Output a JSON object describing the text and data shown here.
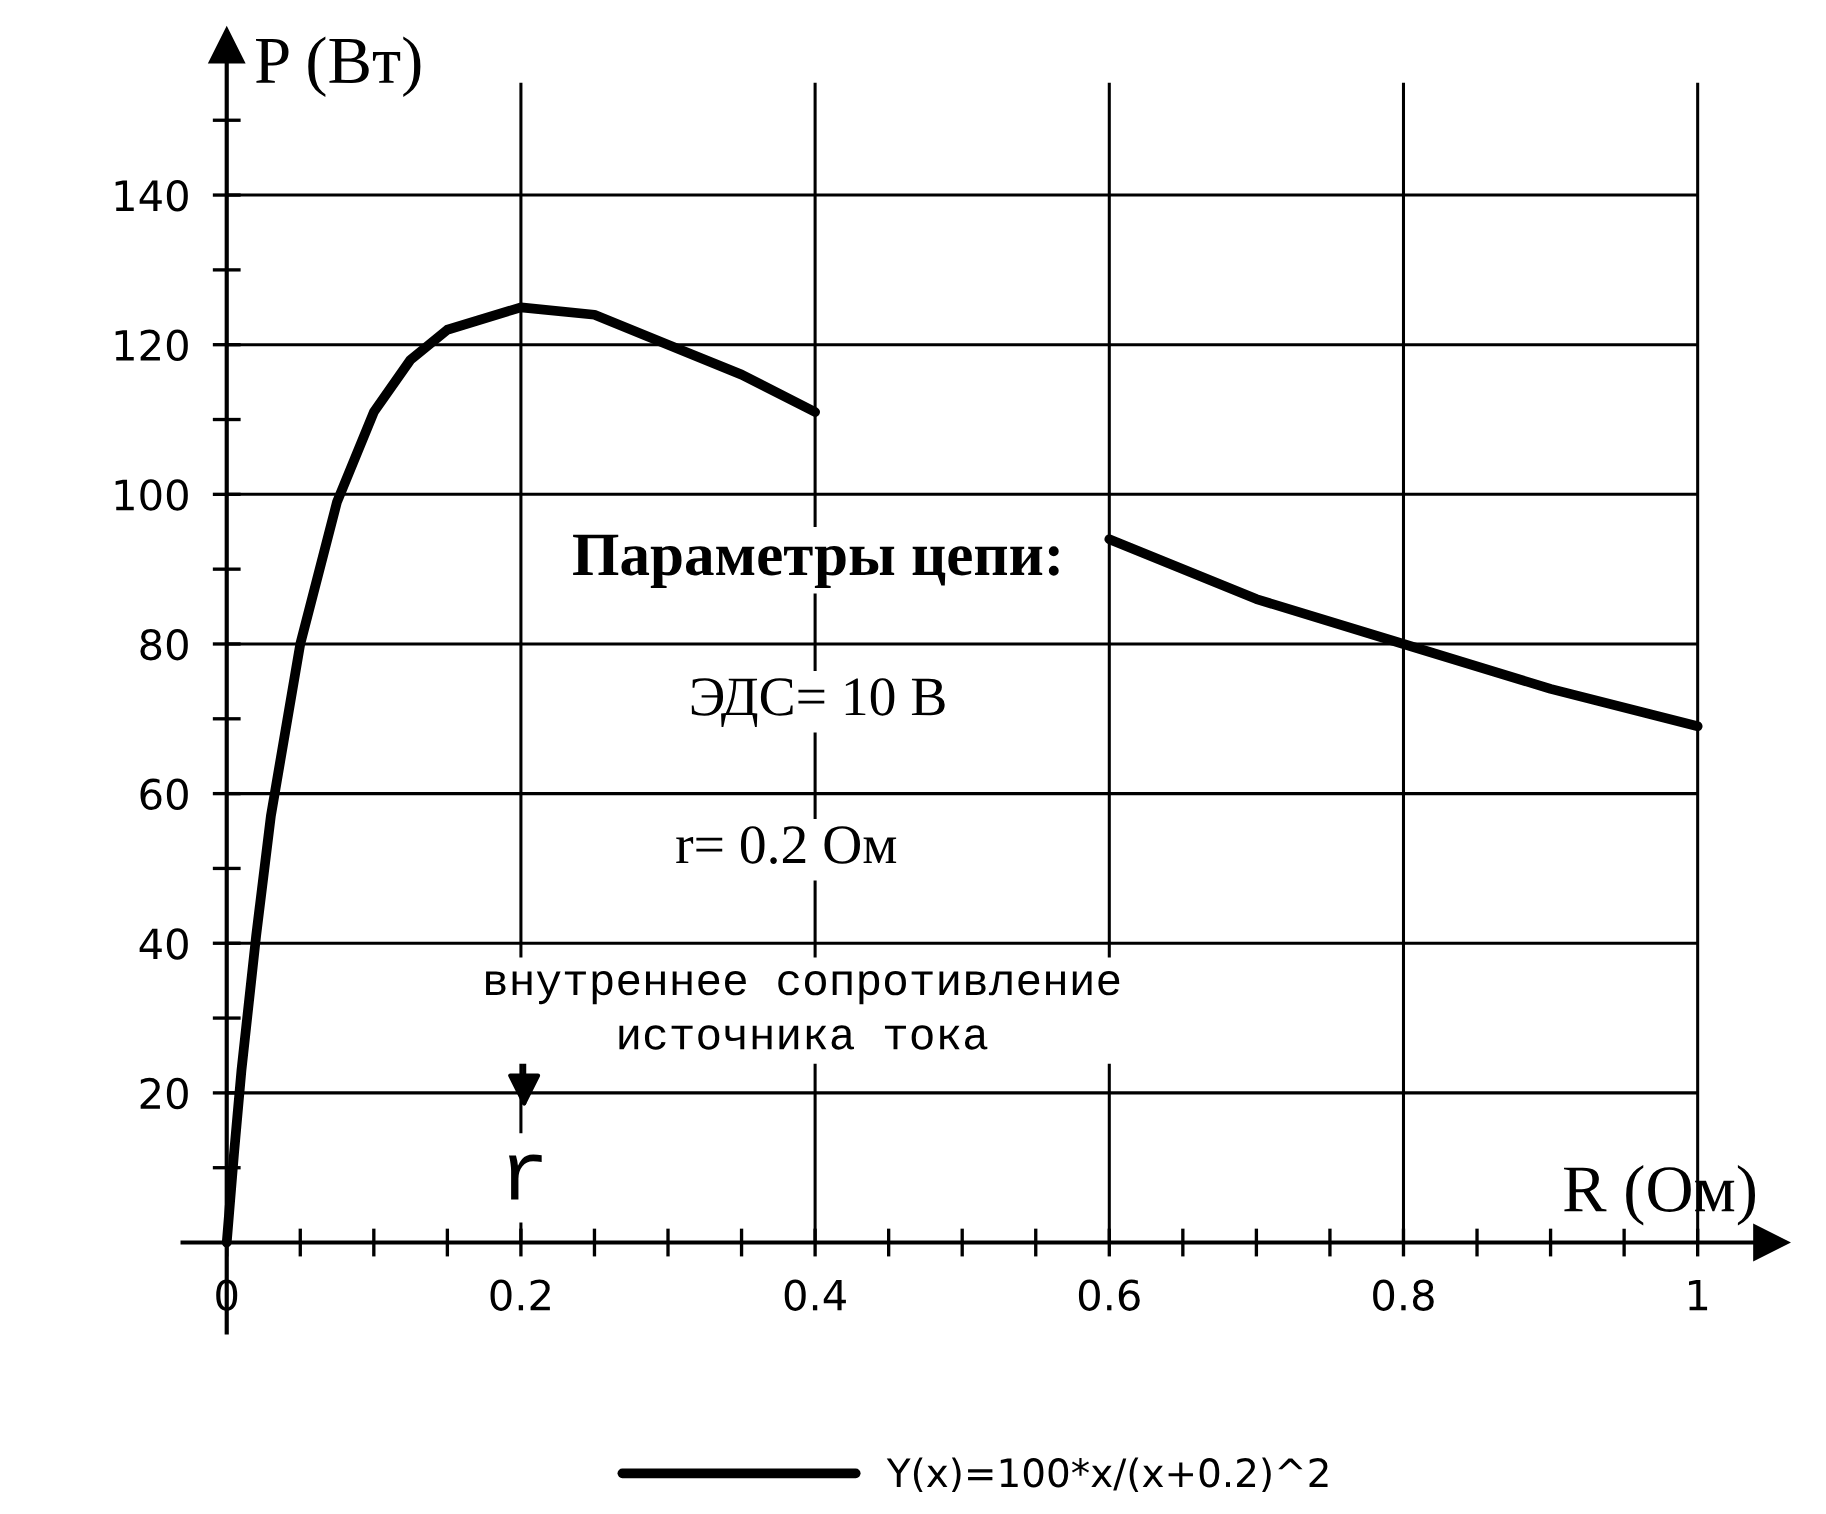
{
  "chart_data": {
    "type": "line",
    "xlabel": "R (Ом)",
    "ylabel": "P (Вт)",
    "x": [
      0,
      0.005,
      0.01,
      0.02,
      0.03,
      0.05,
      0.075,
      0.1,
      0.125,
      0.15,
      0.2,
      0.25,
      0.3,
      0.35,
      0.4,
      0.5,
      0.6,
      0.7,
      0.8,
      0.9,
      1
    ],
    "series": [
      {
        "name": "Y(x)=100*x/(x+0.2)^2",
        "color": "#000000",
        "values": [
          0,
          12,
          23,
          41,
          57,
          80,
          99,
          111,
          118,
          122,
          125,
          124,
          120,
          116,
          111,
          null,
          94,
          86,
          80,
          74,
          69
        ]
      }
    ],
    "xlim": [
      -0.03,
      1.05
    ],
    "ylim": [
      -12,
      160
    ],
    "xticks": [
      {
        "value": 0,
        "label": "0"
      },
      {
        "value": 0.05,
        "label": null
      },
      {
        "value": 0.1,
        "label": null
      },
      {
        "value": 0.15,
        "label": null
      },
      0.2,
      {
        "value": 0.25,
        "label": null
      },
      {
        "value": 0.3,
        "label": null
      },
      {
        "value": 0.35,
        "label": null
      },
      0.4,
      {
        "value": 0.45,
        "label": null
      },
      {
        "value": 0.5,
        "label": null
      },
      {
        "value": 0.55,
        "label": null
      },
      0.6,
      {
        "value": 0.65,
        "label": null
      },
      {
        "value": 0.7,
        "label": null
      },
      {
        "value": 0.75,
        "label": null
      },
      0.8,
      {
        "value": 0.85,
        "label": null
      },
      {
        "value": 0.9,
        "label": null
      },
      {
        "value": 0.95,
        "label": null
      },
      1
    ],
    "yticks": [
      {
        "value": 10,
        "label": null
      },
      20,
      {
        "value": 30,
        "label": null
      },
      40,
      {
        "value": 50,
        "label": null
      },
      60,
      {
        "value": 70,
        "label": null
      },
      80,
      {
        "value": 90,
        "label": null
      },
      100,
      {
        "value": 110,
        "label": null
      },
      120,
      {
        "value": 130,
        "label": null
      },
      140,
      {
        "value": 150,
        "label": null
      }
    ],
    "annotations": [
      "Параметры цепи:",
      "ЭДС= 10 В",
      "r= 0.2 Ом",
      "внутреннее сопротивление\nисточника тока",
      "r"
    ],
    "grid": true,
    "legend": "bottom",
    "marker": "none",
    "line_style": "solid"
  }
}
